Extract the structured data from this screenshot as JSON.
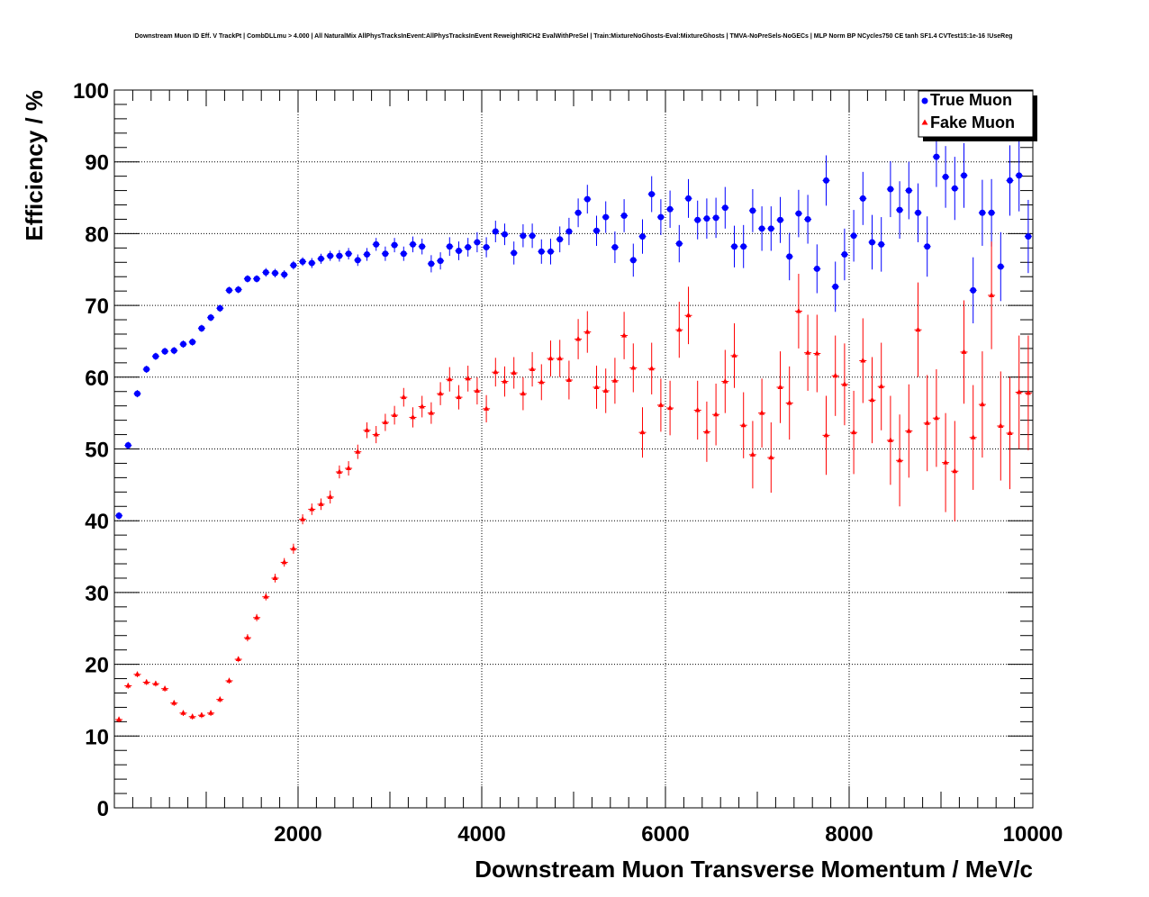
{
  "chart_data": {
    "type": "scatter",
    "title": "Downstream Muon ID Eff. V TrackPt | CombDLLmu > 4.000 | All NaturalMix AllPhysTracksInEvent:AllPhysTracksInEvent ReweightRICH2 EvalWithPreSel | Train:MixtureNoGhosts-Eval:MixtureGhosts | TMVA-NoPreSels-NoGECs | MLP Norm BP NCycles750 CE tanh SF1.4 CVTest15:1e-16 !UseReg",
    "xlabel": "Downstream Muon Transverse Momentum / MeV/c",
    "ylabel": "Efficiency / %",
    "xlim": [
      0,
      10000
    ],
    "ylim": [
      0,
      100
    ],
    "xticks": [
      "2000",
      "4000",
      "6000",
      "8000",
      "10000"
    ],
    "xtick_values": [
      2000,
      4000,
      6000,
      8000,
      10000
    ],
    "yticks": [
      "0",
      "10",
      "20",
      "30",
      "40",
      "50",
      "60",
      "70",
      "80",
      "90",
      "100"
    ],
    "ytick_values": [
      0,
      10,
      20,
      30,
      40,
      50,
      60,
      70,
      80,
      90,
      100
    ],
    "grid": true,
    "legend_position": "top-right",
    "x": [
      50,
      150,
      250,
      350,
      450,
      550,
      650,
      750,
      850,
      950,
      1050,
      1150,
      1250,
      1350,
      1450,
      1550,
      1650,
      1750,
      1850,
      1950,
      2050,
      2150,
      2250,
      2350,
      2450,
      2550,
      2650,
      2750,
      2850,
      2950,
      3050,
      3150,
      3250,
      3350,
      3450,
      3550,
      3650,
      3750,
      3850,
      3950,
      4050,
      4150,
      4250,
      4350,
      4450,
      4550,
      4650,
      4750,
      4850,
      4950,
      5050,
      5150,
      5250,
      5350,
      5450,
      5550,
      5650,
      5750,
      5850,
      5950,
      6050,
      6150,
      6250,
      6350,
      6450,
      6550,
      6650,
      6750,
      6850,
      6950,
      7050,
      7150,
      7250,
      7350,
      7450,
      7550,
      7650,
      7750,
      7850,
      7950,
      8050,
      8150,
      8250,
      8350,
      8450,
      8550,
      8650,
      8750,
      8850,
      8950,
      9050,
      9150,
      9250,
      9350,
      9450,
      9550,
      9650,
      9750,
      9850,
      9950
    ],
    "series": [
      {
        "name": "True Muon",
        "color": "#0000ff",
        "marker": "circle",
        "values": [
          40.7,
          50.5,
          57.7,
          61.1,
          62.9,
          63.6,
          63.7,
          64.6,
          64.9,
          66.8,
          68.3,
          69.6,
          72.1,
          72.2,
          73.7,
          73.7,
          74.6,
          74.5,
          74.3,
          75.6,
          76.1,
          75.9,
          76.5,
          76.9,
          76.9,
          77.2,
          76.3,
          77.1,
          78.5,
          77.2,
          78.4,
          77.2,
          78.5,
          78.2,
          75.8,
          76.2,
          78.2,
          77.6,
          78.1,
          78.8,
          78.1,
          80.3,
          79.9,
          77.3,
          79.7,
          79.7,
          77.5,
          77.5,
          79.2,
          80.3,
          82.9,
          84.8,
          80.4,
          82.3,
          78.1,
          82.5,
          76.3,
          79.6,
          85.5,
          82.3,
          83.4,
          78.6,
          84.9,
          81.9,
          82.1,
          82.2,
          83.6,
          78.2,
          78.2,
          83.2,
          80.7,
          80.7,
          81.9,
          76.8,
          82.8,
          82.0,
          75.1,
          87.4,
          72.6,
          77.1,
          79.7,
          84.9,
          78.8,
          78.5,
          86.2,
          83.3,
          86.0,
          82.9,
          78.2,
          90.7,
          87.9,
          86.3,
          88.1,
          72.1,
          82.9,
          82.9,
          75.4,
          87.4,
          88.1,
          79.6
        ],
        "errors": [
          0.5,
          0.5,
          0.5,
          0.5,
          0.5,
          0.5,
          0.5,
          0.5,
          0.5,
          0.5,
          0.5,
          0.5,
          0.5,
          0.5,
          0.5,
          0.5,
          0.6,
          0.6,
          0.6,
          0.6,
          0.6,
          0.7,
          0.7,
          0.7,
          0.8,
          0.8,
          0.8,
          0.9,
          0.9,
          1.0,
          1.0,
          1.0,
          1.1,
          1.1,
          1.2,
          1.2,
          1.3,
          1.3,
          1.3,
          1.4,
          1.4,
          1.5,
          1.5,
          1.6,
          1.6,
          1.7,
          1.7,
          1.8,
          1.8,
          1.9,
          2.0,
          2.0,
          2.1,
          2.2,
          2.2,
          2.3,
          2.3,
          2.4,
          2.5,
          2.5,
          2.6,
          2.6,
          2.7,
          2.7,
          2.8,
          2.8,
          2.9,
          2.9,
          3.0,
          3.0,
          3.1,
          3.1,
          3.2,
          3.3,
          3.3,
          3.4,
          3.4,
          3.5,
          3.5,
          3.6,
          3.6,
          3.7,
          3.8,
          3.8,
          3.9,
          4.0,
          4.0,
          4.1,
          4.2,
          4.2,
          4.3,
          4.4,
          4.5,
          4.6,
          4.6,
          4.7,
          4.8,
          4.9,
          5.0,
          5.1
        ]
      },
      {
        "name": "Fake Muon",
        "color": "#ff0000",
        "marker": "triangle",
        "values": [
          12.3,
          17.0,
          18.6,
          17.5,
          17.3,
          16.6,
          14.6,
          13.2,
          12.7,
          12.9,
          13.2,
          15.1,
          17.7,
          20.7,
          23.7,
          26.5,
          29.4,
          32.0,
          34.2,
          36.1,
          40.2,
          41.6,
          42.3,
          43.3,
          46.8,
          47.3,
          49.6,
          52.6,
          52.0,
          53.7,
          54.7,
          57.2,
          54.4,
          55.9,
          55.0,
          57.7,
          59.7,
          57.2,
          59.8,
          58.1,
          55.6,
          60.7,
          59.4,
          60.6,
          57.7,
          61.1,
          59.3,
          62.6,
          62.6,
          59.6,
          65.3,
          66.3,
          58.6,
          58.1,
          59.5,
          65.8,
          61.3,
          52.3,
          61.2,
          56.1,
          55.7,
          66.6,
          68.6,
          55.4,
          52.4,
          54.8,
          59.4,
          63.0,
          53.3,
          49.2,
          55.0,
          48.8,
          58.6,
          56.4,
          69.2,
          63.4,
          63.3,
          51.9,
          60.2,
          59.0,
          52.3,
          62.3,
          56.8,
          58.7,
          51.2,
          48.4,
          52.5,
          66.6,
          53.6,
          54.3,
          48.1,
          46.9,
          63.5,
          51.6,
          56.2,
          71.4,
          53.2,
          52.2,
          57.9,
          57.8
        ],
        "errors": [
          0.4,
          0.4,
          0.4,
          0.4,
          0.4,
          0.4,
          0.4,
          0.4,
          0.4,
          0.4,
          0.4,
          0.4,
          0.4,
          0.4,
          0.5,
          0.5,
          0.5,
          0.6,
          0.6,
          0.7,
          0.7,
          0.8,
          0.8,
          0.9,
          0.9,
          1.0,
          1.0,
          1.1,
          1.2,
          1.2,
          1.3,
          1.3,
          1.4,
          1.5,
          1.5,
          1.6,
          1.7,
          1.7,
          1.8,
          1.9,
          1.9,
          2.0,
          2.1,
          2.2,
          2.3,
          2.4,
          2.5,
          2.5,
          2.6,
          2.7,
          2.8,
          2.9,
          3.0,
          3.1,
          3.2,
          3.3,
          3.4,
          3.5,
          3.6,
          3.7,
          3.8,
          3.9,
          4.0,
          4.1,
          4.2,
          4.3,
          4.4,
          4.5,
          4.6,
          4.7,
          4.8,
          4.9,
          5.0,
          5.1,
          5.2,
          5.3,
          5.4,
          5.5,
          5.6,
          5.7,
          5.8,
          5.9,
          6.0,
          6.1,
          6.2,
          6.4,
          6.5,
          6.6,
          6.7,
          6.8,
          6.9,
          7.0,
          7.2,
          7.3,
          7.4,
          7.5,
          7.6,
          7.8,
          7.9,
          8.0
        ]
      }
    ]
  }
}
